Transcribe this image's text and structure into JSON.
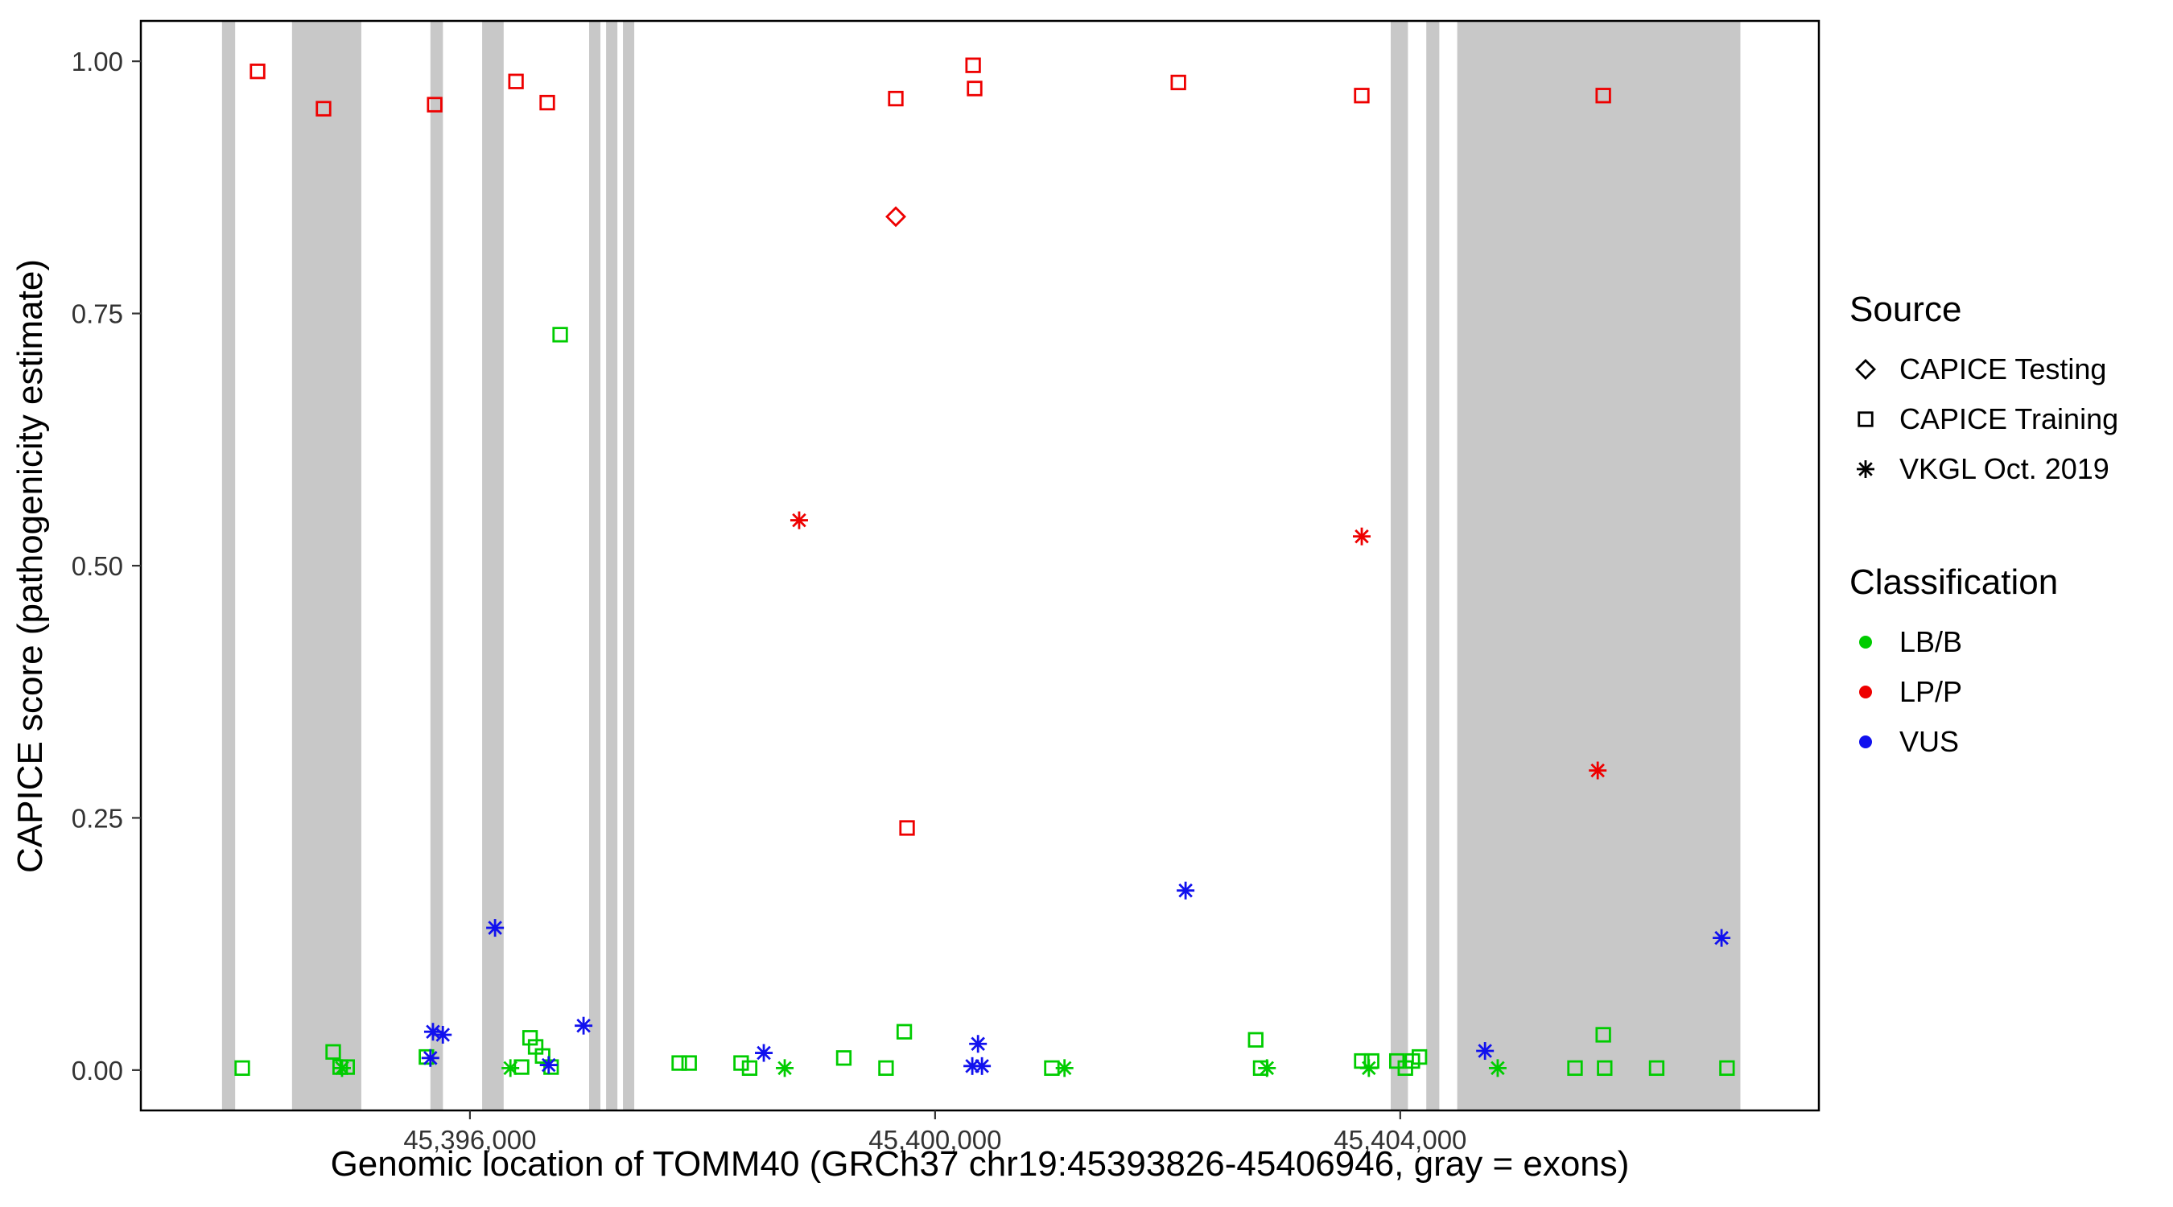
{
  "chart_data": {
    "type": "scatter",
    "title": "",
    "xlabel": "Genomic location of TOMM40 (GRCh37 chr19:45393826-45406946, gray = exons)",
    "ylabel": "CAPICE score (pathogenicity estimate)",
    "xlim": [
      45393170,
      45407600
    ],
    "ylim": [
      -0.04,
      1.04
    ],
    "x_ticks": [
      {
        "value": 45396000,
        "label": "45,396,000"
      },
      {
        "value": 45400000,
        "label": "45,400,000"
      },
      {
        "value": 45404000,
        "label": "45,404,000"
      }
    ],
    "y_ticks": [
      {
        "value": 0,
        "label": "0.00"
      },
      {
        "value": 0.25,
        "label": "0.25"
      },
      {
        "value": 0.5,
        "label": "0.50"
      },
      {
        "value": 0.75,
        "label": "0.75"
      },
      {
        "value": 1,
        "label": "1.00"
      }
    ],
    "exon_color": "#C8C8C8",
    "exons": [
      [
        45393868,
        45393981
      ],
      [
        45394470,
        45395066
      ],
      [
        45395660,
        45395768
      ],
      [
        45396105,
        45396290
      ],
      [
        45397025,
        45397122
      ],
      [
        45397171,
        45397268
      ],
      [
        45397316,
        45397413
      ],
      [
        45403918,
        45404066
      ],
      [
        45404224,
        45404336
      ],
      [
        45404490,
        45406925
      ]
    ],
    "colors": {
      "LB/B": "#00CC00",
      "LP/P": "#EE0000",
      "VUS": "#1111EE"
    },
    "shapes": {
      "CAPICE Testing": "diamond",
      "CAPICE Training": "square",
      "VKGL Oct. 2019": "asterisk"
    },
    "points": [
      {
        "x": 45394174,
        "y": 0.99,
        "source": "CAPICE Training",
        "class": "LP/P"
      },
      {
        "x": 45394741,
        "y": 0.953,
        "source": "CAPICE Training",
        "class": "LP/P"
      },
      {
        "x": 45395697,
        "y": 0.957,
        "source": "CAPICE Training",
        "class": "LP/P"
      },
      {
        "x": 45396396,
        "y": 0.98,
        "source": "CAPICE Training",
        "class": "LP/P"
      },
      {
        "x": 45396665,
        "y": 0.959,
        "source": "CAPICE Training",
        "class": "LP/P"
      },
      {
        "x": 45399662,
        "y": 0.963,
        "source": "CAPICE Training",
        "class": "LP/P"
      },
      {
        "x": 45400327,
        "y": 0.996,
        "source": "CAPICE Training",
        "class": "LP/P"
      },
      {
        "x": 45400340,
        "y": 0.973,
        "source": "CAPICE Training",
        "class": "LP/P"
      },
      {
        "x": 45402092,
        "y": 0.979,
        "source": "CAPICE Training",
        "class": "LP/P"
      },
      {
        "x": 45403669,
        "y": 0.966,
        "source": "CAPICE Training",
        "class": "LP/P"
      },
      {
        "x": 45405746,
        "y": 0.966,
        "source": "CAPICE Training",
        "class": "LP/P"
      },
      {
        "x": 45399759,
        "y": 0.24,
        "source": "CAPICE Training",
        "class": "LP/P"
      },
      {
        "x": 45399662,
        "y": 0.846,
        "source": "CAPICE Testing",
        "class": "LP/P"
      },
      {
        "x": 45398831,
        "y": 0.545,
        "source": "VKGL Oct. 2019",
        "class": "LP/P"
      },
      {
        "x": 45403669,
        "y": 0.529,
        "source": "VKGL Oct. 2019",
        "class": "LP/P"
      },
      {
        "x": 45405698,
        "y": 0.297,
        "source": "VKGL Oct. 2019",
        "class": "LP/P"
      },
      {
        "x": 45396776,
        "y": 0.729,
        "source": "CAPICE Training",
        "class": "LB/B"
      },
      {
        "x": 45394042,
        "y": 0.002,
        "source": "CAPICE Training",
        "class": "LB/B"
      },
      {
        "x": 45394824,
        "y": 0.018,
        "source": "CAPICE Training",
        "class": "LB/B"
      },
      {
        "x": 45394884,
        "y": 0.003,
        "source": "CAPICE Training",
        "class": "LB/B"
      },
      {
        "x": 45394944,
        "y": 0.003,
        "source": "CAPICE Training",
        "class": "LB/B"
      },
      {
        "x": 45395626,
        "y": 0.013,
        "source": "CAPICE Training",
        "class": "LB/B"
      },
      {
        "x": 45396444,
        "y": 0.003,
        "source": "CAPICE Training",
        "class": "LB/B"
      },
      {
        "x": 45396517,
        "y": 0.032,
        "source": "CAPICE Training",
        "class": "LB/B"
      },
      {
        "x": 45396565,
        "y": 0.023,
        "source": "CAPICE Training",
        "class": "LB/B"
      },
      {
        "x": 45396625,
        "y": 0.014,
        "source": "CAPICE Training",
        "class": "LB/B"
      },
      {
        "x": 45396698,
        "y": 0.003,
        "source": "CAPICE Training",
        "class": "LB/B"
      },
      {
        "x": 45397800,
        "y": 0.007,
        "source": "CAPICE Training",
        "class": "LB/B"
      },
      {
        "x": 45397885,
        "y": 0.007,
        "source": "CAPICE Training",
        "class": "LB/B"
      },
      {
        "x": 45398332,
        "y": 0.007,
        "source": "CAPICE Training",
        "class": "LB/B"
      },
      {
        "x": 45398405,
        "y": 0.002,
        "source": "CAPICE Training",
        "class": "LB/B"
      },
      {
        "x": 45399215,
        "y": 0.012,
        "source": "CAPICE Training",
        "class": "LB/B"
      },
      {
        "x": 45399578,
        "y": 0.002,
        "source": "CAPICE Training",
        "class": "LB/B"
      },
      {
        "x": 45399735,
        "y": 0.038,
        "source": "CAPICE Training",
        "class": "LB/B"
      },
      {
        "x": 45401004,
        "y": 0.002,
        "source": "CAPICE Training",
        "class": "LB/B"
      },
      {
        "x": 45402757,
        "y": 0.03,
        "source": "CAPICE Training",
        "class": "LB/B"
      },
      {
        "x": 45402800,
        "y": 0.002,
        "source": "CAPICE Training",
        "class": "LB/B"
      },
      {
        "x": 45403669,
        "y": 0.009,
        "source": "CAPICE Training",
        "class": "LB/B"
      },
      {
        "x": 45403754,
        "y": 0.009,
        "source": "CAPICE Training",
        "class": "LB/B"
      },
      {
        "x": 45403971,
        "y": 0.009,
        "source": "CAPICE Training",
        "class": "LB/B"
      },
      {
        "x": 45404044,
        "y": 0.002,
        "source": "CAPICE Training",
        "class": "LB/B"
      },
      {
        "x": 45404104,
        "y": 0.009,
        "source": "CAPICE Training",
        "class": "LB/B"
      },
      {
        "x": 45404165,
        "y": 0.013,
        "source": "CAPICE Training",
        "class": "LB/B"
      },
      {
        "x": 45405503,
        "y": 0.002,
        "source": "CAPICE Training",
        "class": "LB/B"
      },
      {
        "x": 45405746,
        "y": 0.035,
        "source": "CAPICE Training",
        "class": "LB/B"
      },
      {
        "x": 45405758,
        "y": 0.002,
        "source": "CAPICE Training",
        "class": "LB/B"
      },
      {
        "x": 45406205,
        "y": 0.002,
        "source": "CAPICE Training",
        "class": "LB/B"
      },
      {
        "x": 45406810,
        "y": 0.002,
        "source": "CAPICE Training",
        "class": "LB/B"
      },
      {
        "x": 45394900,
        "y": 0.002,
        "source": "VKGL Oct. 2019",
        "class": "LB/B"
      },
      {
        "x": 45396348,
        "y": 0.002,
        "source": "VKGL Oct. 2019",
        "class": "LB/B"
      },
      {
        "x": 45398707,
        "y": 0.002,
        "source": "VKGL Oct. 2019",
        "class": "LB/B"
      },
      {
        "x": 45401113,
        "y": 0.002,
        "source": "VKGL Oct. 2019",
        "class": "LB/B"
      },
      {
        "x": 45402854,
        "y": 0.002,
        "source": "VKGL Oct. 2019",
        "class": "LB/B"
      },
      {
        "x": 45403730,
        "y": 0.002,
        "source": "VKGL Oct. 2019",
        "class": "LB/B"
      },
      {
        "x": 45404838,
        "y": 0.002,
        "source": "VKGL Oct. 2019",
        "class": "LB/B"
      },
      {
        "x": 45396216,
        "y": 0.141,
        "source": "VKGL Oct. 2019",
        "class": "VUS"
      },
      {
        "x": 45402154,
        "y": 0.178,
        "source": "VKGL Oct. 2019",
        "class": "VUS"
      },
      {
        "x": 45406763,
        "y": 0.131,
        "source": "VKGL Oct. 2019",
        "class": "VUS"
      },
      {
        "x": 45395682,
        "y": 0.038,
        "source": "VKGL Oct. 2019",
        "class": "VUS"
      },
      {
        "x": 45395767,
        "y": 0.035,
        "source": "VKGL Oct. 2019",
        "class": "VUS"
      },
      {
        "x": 45395660,
        "y": 0.012,
        "source": "VKGL Oct. 2019",
        "class": "VUS"
      },
      {
        "x": 45396977,
        "y": 0.044,
        "source": "VKGL Oct. 2019",
        "class": "VUS"
      },
      {
        "x": 45396677,
        "y": 0.005,
        "source": "VKGL Oct. 2019",
        "class": "VUS"
      },
      {
        "x": 45398527,
        "y": 0.017,
        "source": "VKGL Oct. 2019",
        "class": "VUS"
      },
      {
        "x": 45400369,
        "y": 0.026,
        "source": "VKGL Oct. 2019",
        "class": "VUS"
      },
      {
        "x": 45400320,
        "y": 0.004,
        "source": "VKGL Oct. 2019",
        "class": "VUS"
      },
      {
        "x": 45400403,
        "y": 0.004,
        "source": "VKGL Oct. 2019",
        "class": "VUS"
      },
      {
        "x": 45404729,
        "y": 0.019,
        "source": "VKGL Oct. 2019",
        "class": "VUS"
      }
    ]
  },
  "legend": {
    "source": {
      "title": "Source",
      "items": [
        {
          "label": "CAPICE Testing",
          "shape": "diamond"
        },
        {
          "label": "CAPICE Training",
          "shape": "square"
        },
        {
          "label": "VKGL Oct. 2019",
          "shape": "asterisk"
        }
      ]
    },
    "classification": {
      "title": "Classification",
      "items": [
        {
          "label": "LB/B",
          "class": "LB/B"
        },
        {
          "label": "LP/P",
          "class": "LP/P"
        },
        {
          "label": "VUS",
          "class": "VUS"
        }
      ]
    }
  }
}
